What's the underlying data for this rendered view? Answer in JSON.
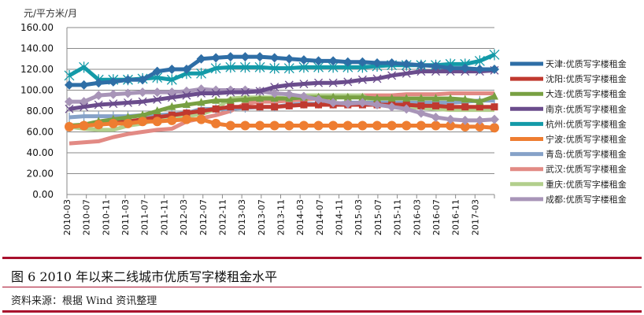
{
  "chart_data": {
    "type": "line",
    "ylabel": "元/平方米/月",
    "ylim": [
      0,
      160
    ],
    "yticks": [
      "0.00",
      "20.00",
      "40.00",
      "60.00",
      "80.00",
      "100.00",
      "120.00",
      "140.00",
      "160.00"
    ],
    "grid": true,
    "legend_position": "right",
    "x_tick_labels": [
      "2010-03",
      "2010-07",
      "2010-11",
      "2011-03",
      "2011-07",
      "2011-11",
      "2012-03",
      "2012-07",
      "2012-11",
      "2013-03",
      "2013-07",
      "2013-11",
      "2014-03",
      "2014-07",
      "2014-11",
      "2015-03",
      "2015-07",
      "2015-11",
      "2016-03",
      "2016-07",
      "2016-11",
      "2017-03"
    ],
    "series": [
      {
        "name": "天津:优质写字楼租金",
        "color": "#2e6ea6",
        "marker": "diamond",
        "values": [
          105,
          105,
          107,
          108,
          110,
          110,
          118,
          120,
          120,
          130,
          131,
          132,
          132,
          132,
          131,
          130,
          129,
          128,
          128,
          127,
          127,
          126,
          126,
          125,
          124,
          123,
          121,
          121,
          120,
          120
        ]
      },
      {
        "name": "沈阳:优质写字楼租金",
        "color": "#c0392f",
        "marker": "square",
        "values": [
          65,
          66,
          67,
          69,
          70,
          72,
          74,
          76,
          78,
          80,
          82,
          84,
          84,
          84,
          84,
          85,
          86,
          86,
          86,
          86,
          86,
          86,
          86,
          86,
          85,
          85,
          84,
          84,
          84,
          84
        ]
      },
      {
        "name": "大连:优质写字楼租金",
        "color": "#78a042",
        "marker": "triangle",
        "values": [
          66,
          67,
          70,
          72,
          74,
          76,
          80,
          84,
          86,
          88,
          90,
          90,
          91,
          92,
          92,
          92,
          93,
          93,
          93,
          93,
          93,
          92,
          92,
          92,
          92,
          92,
          92,
          91,
          89,
          94
        ]
      },
      {
        "name": "南京:优质写字楼租金",
        "color": "#6a4c8c",
        "marker": "x",
        "values": [
          82,
          84,
          86,
          87,
          88,
          89,
          91,
          93,
          95,
          97,
          97,
          98,
          98,
          99,
          103,
          105,
          106,
          107,
          107,
          108,
          110,
          111,
          114,
          116,
          118,
          118,
          118,
          118,
          118,
          119
        ]
      },
      {
        "name": "杭州:优质写字楼租金",
        "color": "#139aa8",
        "marker": "star",
        "values": [
          114,
          122,
          110,
          110,
          110,
          111,
          112,
          110,
          116,
          116,
          121,
          122,
          122,
          122,
          121,
          121,
          122,
          122,
          122,
          122,
          122,
          123,
          124,
          124,
          124,
          124,
          125,
          125,
          128,
          134
        ]
      },
      {
        "name": "宁波:优质写字楼租金",
        "color": "#ee7d31",
        "marker": "circle",
        "values": [
          65,
          66,
          67,
          68,
          68,
          70,
          70,
          71,
          72,
          72,
          68,
          66,
          66,
          66,
          66,
          66,
          66,
          66,
          66,
          66,
          66,
          66,
          66,
          66,
          66,
          66,
          66,
          65,
          65,
          64
        ]
      },
      {
        "name": "青岛:优质写字楼租金",
        "color": "#86a2c8",
        "marker": "plus",
        "values": [
          74,
          75,
          75,
          75,
          75,
          76,
          76,
          77,
          78,
          82,
          82,
          82,
          83,
          84,
          84,
          86,
          87,
          87,
          87,
          88,
          88,
          88,
          88,
          88,
          88,
          88,
          88,
          89,
          90,
          90
        ]
      },
      {
        "name": "武汉:优质写字楼租金",
        "color": "#e28a84",
        "marker": "none",
        "values": [
          49,
          50,
          51,
          55,
          58,
          60,
          62,
          63,
          70,
          73,
          76,
          80,
          87,
          89,
          89,
          90,
          91,
          92,
          93,
          94,
          95,
          95,
          95,
          96,
          96,
          96,
          97,
          97,
          97,
          97
        ]
      },
      {
        "name": "重庆:优质写字楼租金",
        "color": "#b2cf8c",
        "marker": "none",
        "values": [
          65,
          63,
          62,
          62,
          66,
          68,
          72,
          73,
          75,
          77,
          82,
          92,
          93,
          93,
          93,
          92,
          95,
          95,
          95,
          95,
          95,
          86,
          85,
          84,
          83,
          82,
          81,
          81,
          81,
          81
        ]
      },
      {
        "name": "成都:优质写字楼租金",
        "color": "#a895b8",
        "marker": "diamond",
        "values": [
          89,
          89,
          95,
          96,
          97,
          98,
          98,
          98,
          99,
          101,
          100,
          100,
          100,
          99,
          97,
          96,
          94,
          91,
          88,
          87,
          88,
          86,
          84,
          82,
          78,
          74,
          72,
          71,
          71,
          72
        ]
      }
    ]
  },
  "caption": "图 6   2010 年以来二线城市优质写字楼租金水平",
  "source": "资料来源：根据 Wind 资讯整理"
}
